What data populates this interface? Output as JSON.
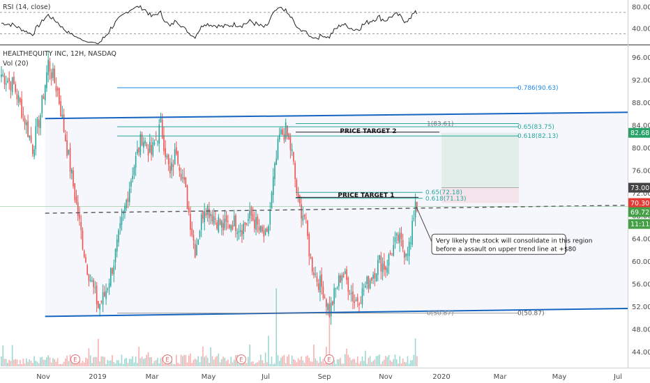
{
  "chart_data": {
    "type": "candlestick",
    "title": "HEALTHEQUITY INC, 12H, NASDAQ",
    "volume_label": "Vol (20)",
    "rsi": {
      "label": "RSI (14, close)",
      "ticks": [
        80,
        40
      ],
      "tick_labels": [
        "80.00",
        "40.00"
      ],
      "levels": [
        70,
        30
      ],
      "ylim": [
        15,
        88
      ]
    },
    "x_ticks": [
      "Nov",
      "2019",
      "Mar",
      "May",
      "Jul",
      "Sep",
      "Nov",
      "2020",
      "Mar",
      "May",
      "Jul"
    ],
    "y_ticks": [
      96,
      92,
      88,
      84,
      80,
      76,
      72,
      68,
      64,
      60,
      56,
      52,
      48,
      44
    ],
    "y_tick_labels": [
      "96.00",
      "92.00",
      "88.00",
      "84.00",
      "80.00",
      "76.00",
      "72.00",
      "68.00",
      "64.00",
      "60.00",
      "56.00",
      "52.00",
      "48.00",
      "44.00"
    ],
    "ylim": [
      41.5,
      98
    ],
    "price_path": [
      [
        0,
        93
      ],
      [
        8,
        91
      ],
      [
        15,
        85
      ],
      [
        20,
        80
      ],
      [
        25,
        86
      ],
      [
        30,
        95
      ],
      [
        36,
        90
      ],
      [
        42,
        80
      ],
      [
        48,
        70
      ],
      [
        54,
        60
      ],
      [
        58,
        56
      ],
      [
        62,
        52
      ],
      [
        66,
        54
      ],
      [
        72,
        60
      ],
      [
        78,
        68
      ],
      [
        84,
        76
      ],
      [
        90,
        82
      ],
      [
        96,
        79
      ],
      [
        102,
        84
      ],
      [
        108,
        75
      ],
      [
        112,
        80
      ],
      [
        118,
        72
      ],
      [
        124,
        62
      ],
      [
        130,
        70
      ],
      [
        136,
        68
      ],
      [
        142,
        66
      ],
      [
        148,
        67
      ],
      [
        154,
        66
      ],
      [
        160,
        68
      ],
      [
        166,
        65
      ],
      [
        170,
        64
      ],
      [
        174,
        74
      ],
      [
        178,
        82
      ],
      [
        182,
        83
      ],
      [
        186,
        79
      ],
      [
        190,
        70
      ],
      [
        194,
        68
      ],
      [
        198,
        60
      ],
      [
        202,
        57
      ],
      [
        206,
        55
      ],
      [
        210,
        51
      ],
      [
        214,
        55
      ],
      [
        218,
        58
      ],
      [
        222,
        56
      ],
      [
        226,
        53
      ],
      [
        230,
        54
      ],
      [
        234,
        56
      ],
      [
        238,
        58
      ],
      [
        242,
        60
      ],
      [
        246,
        59
      ],
      [
        250,
        62
      ],
      [
        254,
        64
      ],
      [
        258,
        62
      ],
      [
        262,
        63
      ],
      [
        265,
        71
      ],
      [
        266,
        69.5
      ]
    ],
    "current_price": "69.72",
    "price_tags": [
      {
        "value": "82.68",
        "color": "#26a269"
      },
      {
        "value": "73.00",
        "color": "#444444"
      },
      {
        "value": "70.30",
        "color": "#e53935"
      },
      {
        "value": "69.72",
        "color": "#43a047"
      },
      {
        "value": "11:11:37",
        "color": "#43a047"
      }
    ],
    "annotations": {
      "fib_upper": [
        {
          "label": "0.786(90.63)",
          "value": 90.63
        },
        {
          "label": "1(83.61)",
          "value": 83.61
        },
        {
          "label": "0.65(83.75)",
          "value": 83.75
        },
        {
          "label": "0.618(82.13)",
          "value": 82.13
        }
      ],
      "fib_mid": [
        {
          "label": "0.65(72.18)",
          "value": 72.18
        },
        {
          "label": "0.618(71.13)",
          "value": 71.13
        }
      ],
      "fib_low": [
        {
          "label": "0(50.87)",
          "value": 50.87
        },
        {
          "label": "0(50.87)",
          "value": 50.87
        }
      ],
      "targets": [
        "PRICE TARGET 2",
        "PRICE TARGET 1"
      ],
      "note_lines": [
        "Very likely the stock will consolidate in this region",
        "before a assault on upper trend line at +$80"
      ],
      "channel_upper": [
        [
          28,
          85.2
        ],
        [
          255,
          86.2
        ]
      ],
      "channel_lower": [
        [
          28,
          50.3
        ],
        [
          255,
          51.6
        ]
      ],
      "midline": [
        [
          28,
          68.5
        ],
        [
          255,
          69.8
        ]
      ],
      "reward_zone": [
        82.68,
        73.0
      ],
      "risk_zone": [
        73.0,
        70.3
      ]
    },
    "earnings_markers": [
      "E",
      "E",
      "E",
      "E",
      "E"
    ],
    "grid": false,
    "colors": {
      "up": "#26a69a",
      "down": "#ef5350",
      "channel": "#1565c0",
      "fib_blue": "#1e88e5",
      "fib_green": "#26a69a",
      "reward": "#c8e6c9",
      "risk": "#ffcdd2"
    }
  }
}
